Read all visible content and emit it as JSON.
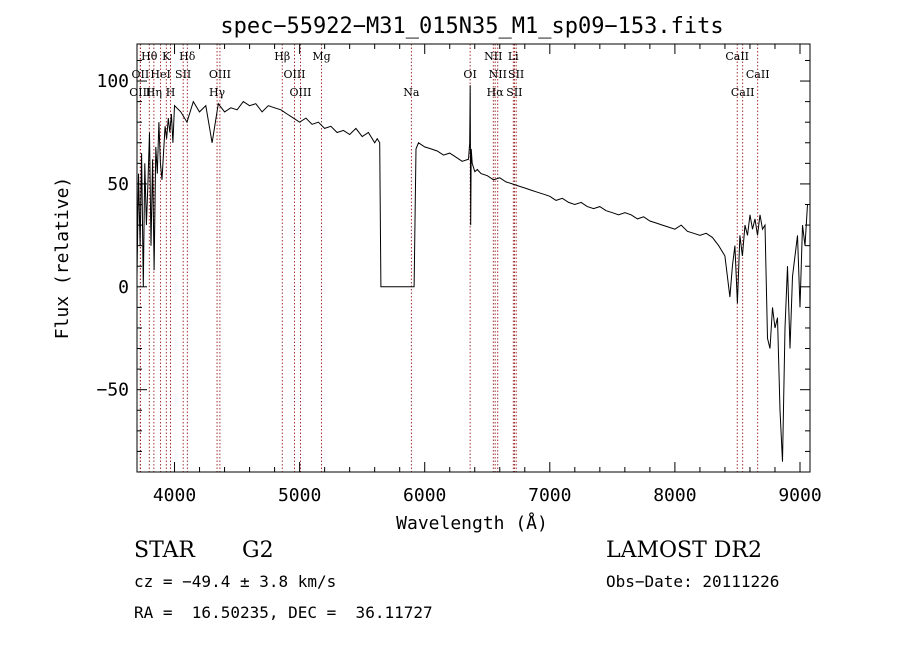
{
  "chart_data": {
    "type": "line",
    "title": "spec−55922−M31_015N35_M1_sp09−153.fits",
    "xlabel": "Wavelength (Å)",
    "ylabel": "Flux (relative)",
    "xlim": [
      3700,
      9080
    ],
    "ylim": [
      -90,
      118
    ],
    "x_ticks": [
      {
        "value": 4000,
        "label": "4000"
      },
      {
        "value": 5000,
        "label": "5000"
      },
      {
        "value": 6000,
        "label": "6000"
      },
      {
        "value": 7000,
        "label": "7000"
      },
      {
        "value": 8000,
        "label": "8000"
      },
      {
        "value": 9000,
        "label": "9000"
      }
    ],
    "y_ticks": [
      {
        "value": 100,
        "label": "100"
      },
      {
        "value": 50,
        "label": "50"
      },
      {
        "value": 0,
        "label": "0"
      },
      {
        "value": -50,
        "label": "−50"
      }
    ],
    "line_color": "#000000",
    "marker_color": "#8b0000",
    "series": [
      {
        "x": [
          3700,
          3712,
          3725,
          3737,
          3750,
          3762,
          3775,
          3787,
          3800,
          3812,
          3825,
          3837,
          3850,
          3862,
          3875,
          3887,
          3900,
          3912,
          3925,
          3937,
          3950,
          3962,
          3975,
          3987,
          4000,
          4050,
          4100,
          4150,
          4200,
          4250,
          4300,
          4350,
          4400,
          4450,
          4500,
          4550,
          4600,
          4650,
          4700,
          4750,
          4800,
          4850,
          4900,
          4950,
          5000,
          5050,
          5100,
          5150,
          5200,
          5250,
          5300,
          5350,
          5400,
          5450,
          5500,
          5550,
          5600,
          5620,
          5640,
          5650,
          5700,
          5800,
          5900,
          5915,
          5930,
          5950,
          6000,
          6050,
          6100,
          6150,
          6200,
          6250,
          6300,
          6350,
          6360,
          6364,
          6368,
          6372,
          6380,
          6400,
          6420,
          6450,
          6500,
          6550,
          6600,
          6650,
          6700,
          6750,
          6800,
          6850,
          6900,
          6950,
          7000,
          7050,
          7100,
          7150,
          7200,
          7250,
          7300,
          7350,
          7400,
          7450,
          7500,
          7550,
          7600,
          7650,
          7700,
          7750,
          7800,
          7850,
          7900,
          7950,
          8000,
          8050,
          8100,
          8150,
          8200,
          8250,
          8300,
          8350,
          8400,
          8440,
          8460,
          8480,
          8500,
          8520,
          8540,
          8560,
          8580,
          8600,
          8620,
          8640,
          8660,
          8680,
          8700,
          8720,
          8740,
          8760,
          8780,
          8800,
          8820,
          8840,
          8860,
          8880,
          8900,
          8920,
          8940,
          8960,
          8980,
          9000,
          9020,
          9040,
          9060
        ],
        "y": [
          5,
          55,
          20,
          65,
          0,
          60,
          30,
          50,
          75,
          20,
          62,
          8,
          68,
          55,
          80,
          60,
          52,
          65,
          78,
          72,
          82,
          75,
          84,
          70,
          88,
          85,
          80,
          90,
          85,
          88,
          70,
          89,
          85,
          87,
          86,
          90,
          88,
          89,
          85,
          88,
          87,
          86,
          84,
          82,
          80,
          82,
          79,
          80,
          77,
          78,
          75,
          76,
          74,
          77,
          73,
          75,
          70,
          72,
          70,
          0,
          0,
          0,
          0,
          0,
          67,
          70,
          68,
          67,
          66,
          64,
          65,
          63,
          61,
          62,
          70,
          98,
          30,
          67,
          60,
          56,
          57,
          55,
          54,
          52,
          53,
          51,
          50,
          49,
          48,
          47,
          46,
          45,
          44,
          42,
          43,
          41,
          40,
          41,
          39,
          38,
          39,
          37,
          36,
          35,
          36,
          35,
          33,
          34,
          32,
          31,
          30,
          29,
          28,
          30,
          27,
          26,
          25,
          26,
          24,
          20,
          15,
          -5,
          10,
          20,
          -8,
          25,
          15,
          30,
          25,
          35,
          28,
          33,
          25,
          35,
          28,
          30,
          -25,
          -30,
          -10,
          -20,
          -15,
          -60,
          -85,
          -20,
          10,
          -30,
          5,
          15,
          25,
          -10,
          30,
          20,
          40
        ]
      }
    ],
    "line_markers": [
      {
        "name": "Hθ",
        "x": 3798,
        "row": 0
      },
      {
        "name": "K",
        "x": 3934,
        "row": 0
      },
      {
        "name": "Hδ",
        "x": 4102,
        "row": 0
      },
      {
        "name": "Hβ",
        "x": 4861,
        "row": 0
      },
      {
        "name": "Mg",
        "x": 5175,
        "row": 0
      },
      {
        "name": "NII",
        "x": 6548,
        "row": 0
      },
      {
        "name": "Li",
        "x": 6708,
        "row": 0
      },
      {
        "name": "CaII",
        "x": 8498,
        "row": 0
      },
      {
        "name": "OII",
        "x": 3727,
        "row": 1
      },
      {
        "name": "HeI",
        "x": 3889,
        "row": 1
      },
      {
        "name": "SII",
        "x": 4069,
        "row": 1
      },
      {
        "name": "OIII",
        "x": 4363,
        "row": 1
      },
      {
        "name": "OIII",
        "x": 4959,
        "row": 1
      },
      {
        "name": "OI",
        "x": 6363,
        "row": 1
      },
      {
        "name": "NII",
        "x": 6584,
        "row": 1
      },
      {
        "name": "SII",
        "x": 6731,
        "row": 1
      },
      {
        "name": "CaII",
        "x": 8662,
        "row": 1
      },
      {
        "name": "OIII",
        "x": 3726,
        "row": 2
      },
      {
        "name": "Hη",
        "x": 3835,
        "row": 2
      },
      {
        "name": "H",
        "x": 3968,
        "row": 2
      },
      {
        "name": "Hγ",
        "x": 4340,
        "row": 2
      },
      {
        "name": "OIII",
        "x": 5007,
        "row": 2
      },
      {
        "name": "Na",
        "x": 5893,
        "row": 2
      },
      {
        "name": "Hα",
        "x": 6563,
        "row": 2
      },
      {
        "name": "SII",
        "x": 6717,
        "row": 2
      },
      {
        "name": "CaII",
        "x": 8542,
        "row": 2
      }
    ]
  },
  "info": {
    "class": "STAR",
    "subclass": "G2",
    "survey": "LAMOST DR2",
    "cz": "cz = −49.4 ± 3.8 km/s",
    "obs_date": "Obs−Date: 20111226",
    "coords": "RA =  16.50235, DEC =  36.11727"
  }
}
